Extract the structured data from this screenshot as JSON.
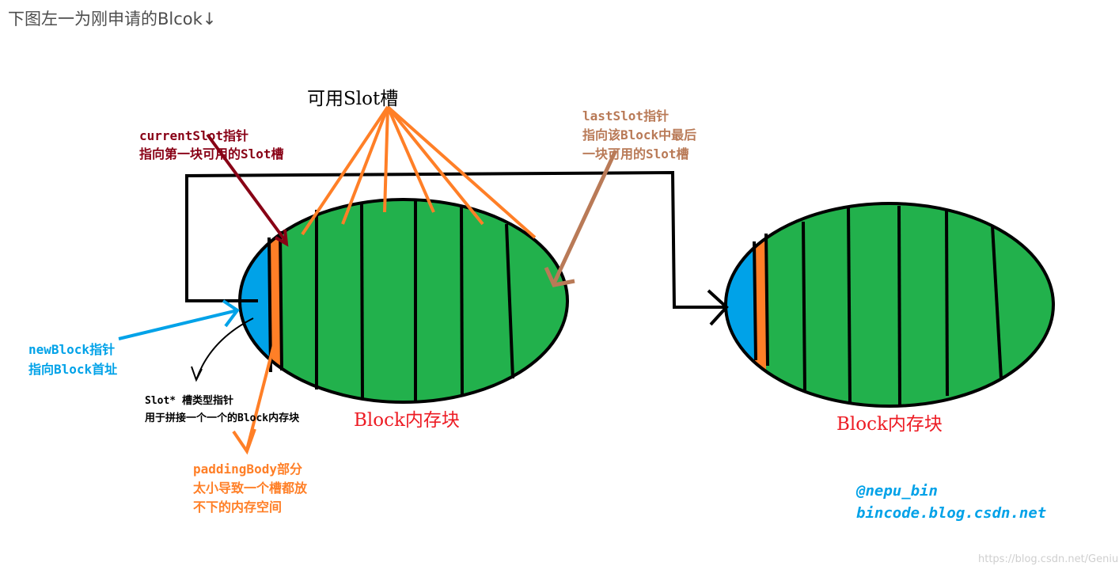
{
  "heading": "下图左一为刚申请的Blcok↓",
  "diagram": {
    "available_slot_label": "可用Slot槽",
    "current_slot_lines": [
      "currentSlot指针",
      "指向第一块可用的Slot槽"
    ],
    "last_slot_lines": [
      "lastSlot指针",
      "指向该Block中最后",
      "一块可用的Slot槽"
    ],
    "new_block_lines": [
      "newBlock指针",
      "指向Block首址"
    ],
    "slot_ptr_lines": [
      "Slot* 槽类型指针",
      "用于拼接一个一个的Block内存块"
    ],
    "padding_lines": [
      "paddingBody部分",
      "太小导致一个槽都放",
      "不下的内存空间"
    ],
    "block_label_left": "Block内存块",
    "block_label_right": "Block内存块",
    "signature_lines": [
      "@nepu_bin",
      "bincode.blog.csdn.net"
    ],
    "watermark": "https://blog.csdn.net/Genius",
    "colors": {
      "green": "#22b14c",
      "blue": "#00a2e8",
      "orange": "#ff7f27",
      "dark_red": "#880015",
      "brown": "#b97a57",
      "red": "#ed1c24",
      "black": "#000000"
    }
  }
}
